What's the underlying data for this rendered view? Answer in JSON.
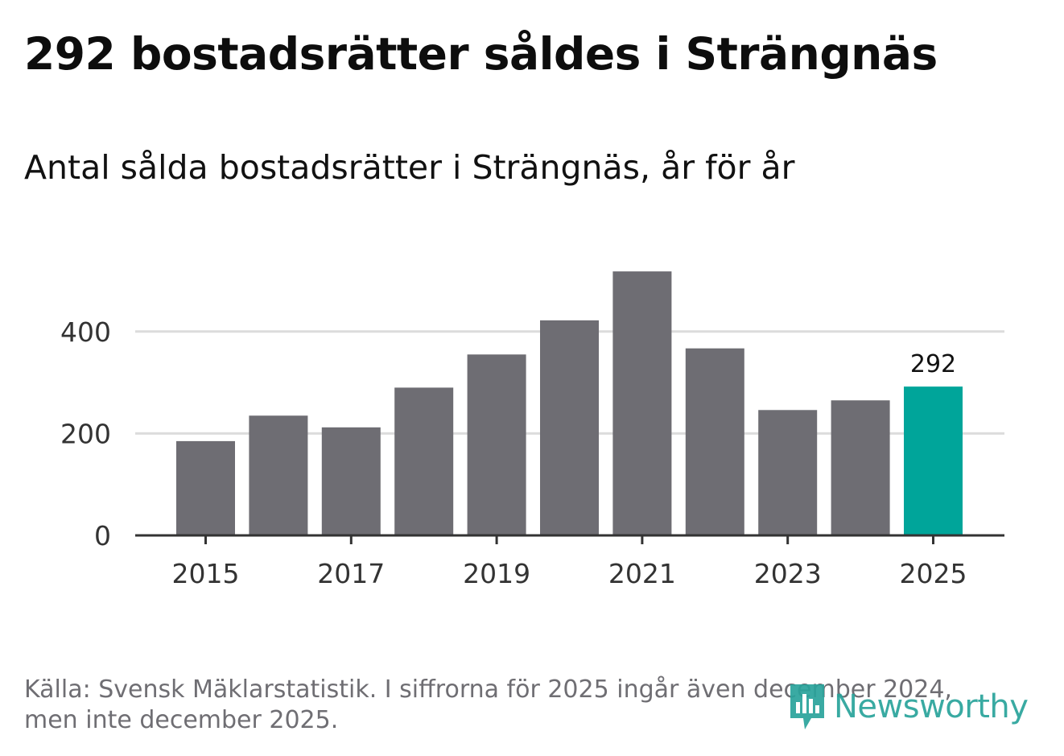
{
  "header": {
    "title": "292 bostadsrätter såldes i Strängnäs",
    "subtitle": "Antal sålda bostadsrätter i Strängnäs, år för år"
  },
  "colors": {
    "bar": "#6e6d73",
    "highlight": "#00a59a",
    "grid": "#dcdcdc",
    "axis": "#333333",
    "text": "#333333",
    "source_text": "#6f6e73",
    "logo": "#29a39b"
  },
  "chart_data": {
    "type": "bar",
    "title": "Antal sålda bostadsrätter i Strängnäs, år för år",
    "xlabel": "",
    "ylabel": "",
    "categories": [
      "2015",
      "2016",
      "2017",
      "2018",
      "2019",
      "2020",
      "2021",
      "2022",
      "2023",
      "2024",
      "2025"
    ],
    "values": [
      185,
      235,
      212,
      290,
      355,
      422,
      518,
      367,
      246,
      265,
      292
    ],
    "highlight_index": 10,
    "highlight_label": "292",
    "xticks": [
      "2015",
      "2017",
      "2019",
      "2021",
      "2023",
      "2025"
    ],
    "yticks": [
      0,
      200,
      400
    ],
    "ylim": [
      0,
      540
    ],
    "grid": true,
    "legend": "none"
  },
  "footer": {
    "source_line1": "Källa: Svensk Mäklarstatistik. I siffrorna för 2025 ingår även december 2024,",
    "source_line2": "men inte december 2025."
  },
  "logo": {
    "name": "Newsworthy",
    "icon": "newsworthy-bars-icon"
  }
}
